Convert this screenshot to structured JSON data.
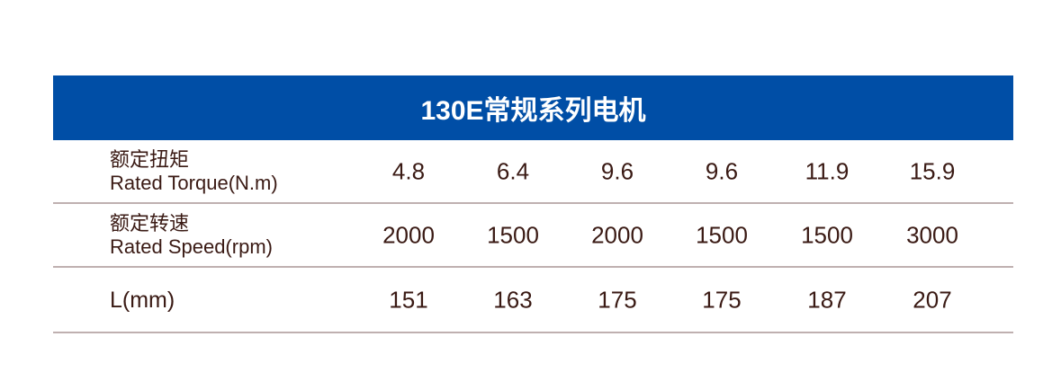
{
  "title": "130E常规系列电机",
  "colors": {
    "header_bg": "#004ea6",
    "text": "#3a1a14",
    "divider": "#bfb0b0"
  },
  "rows": [
    {
      "label_cn": "额定扭矩",
      "label_en": "Rated Torque(N.m)",
      "values": [
        "4.8",
        "6.4",
        "9.6",
        "9.6",
        "11.9",
        "15.9"
      ]
    },
    {
      "label_cn": "额定转速",
      "label_en": "Rated Speed(rpm)",
      "values": [
        "2000",
        "1500",
        "2000",
        "1500",
        "1500",
        "3000"
      ]
    },
    {
      "label_en": "L(mm)",
      "values": [
        "151",
        "163",
        "175",
        "175",
        "187",
        "207"
      ]
    }
  ]
}
